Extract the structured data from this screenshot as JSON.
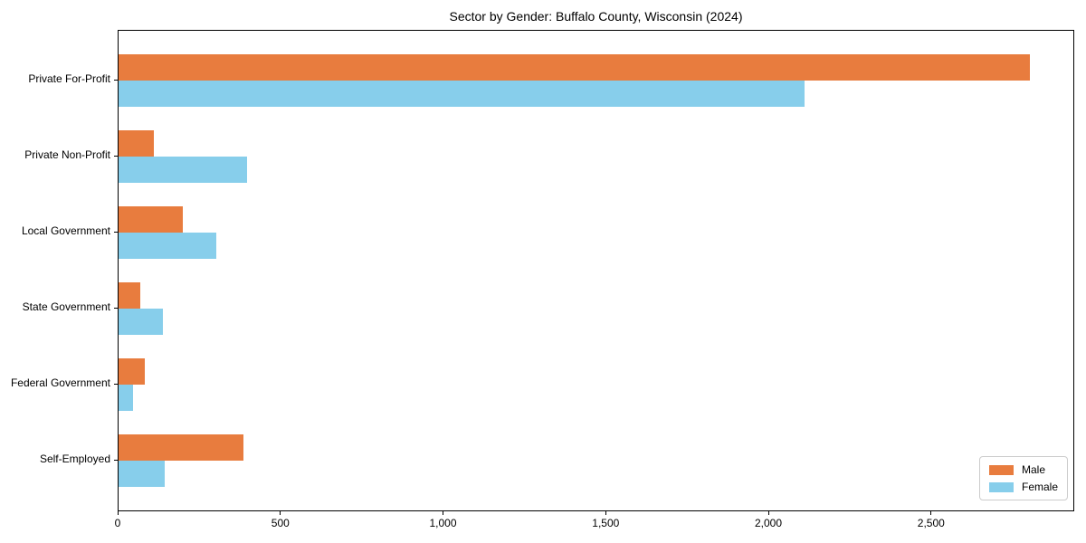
{
  "chart_data": {
    "type": "bar",
    "orientation": "horizontal",
    "title": "Sector by Gender: Buffalo County, Wisconsin (2024)",
    "categories": [
      "Private For-Profit",
      "Private Non-Profit",
      "Local Government",
      "State Government",
      "Federal Government",
      "Self-Employed"
    ],
    "series": [
      {
        "name": "Male",
        "color": "#E87C3E",
        "values": [
          2800,
          108,
          196,
          68,
          81,
          384
        ]
      },
      {
        "name": "Female",
        "color": "#87CEEB",
        "values": [
          2108,
          394,
          300,
          137,
          44,
          142
        ]
      }
    ],
    "xlabel": "",
    "ylabel": "",
    "xlim": [
      0,
      2940
    ],
    "xticks": [
      {
        "value": 0,
        "label": "0"
      },
      {
        "value": 500,
        "label": "500"
      },
      {
        "value": 1000,
        "label": "1,000"
      },
      {
        "value": 1500,
        "label": "1,500"
      },
      {
        "value": 2000,
        "label": "2,000"
      },
      {
        "value": 2500,
        "label": "2,500"
      }
    ],
    "grid": false,
    "legend": {
      "position": "lower right"
    },
    "colors": {
      "axis": "#000000",
      "legend_border": "#cccccc",
      "background": "#ffffff"
    }
  }
}
